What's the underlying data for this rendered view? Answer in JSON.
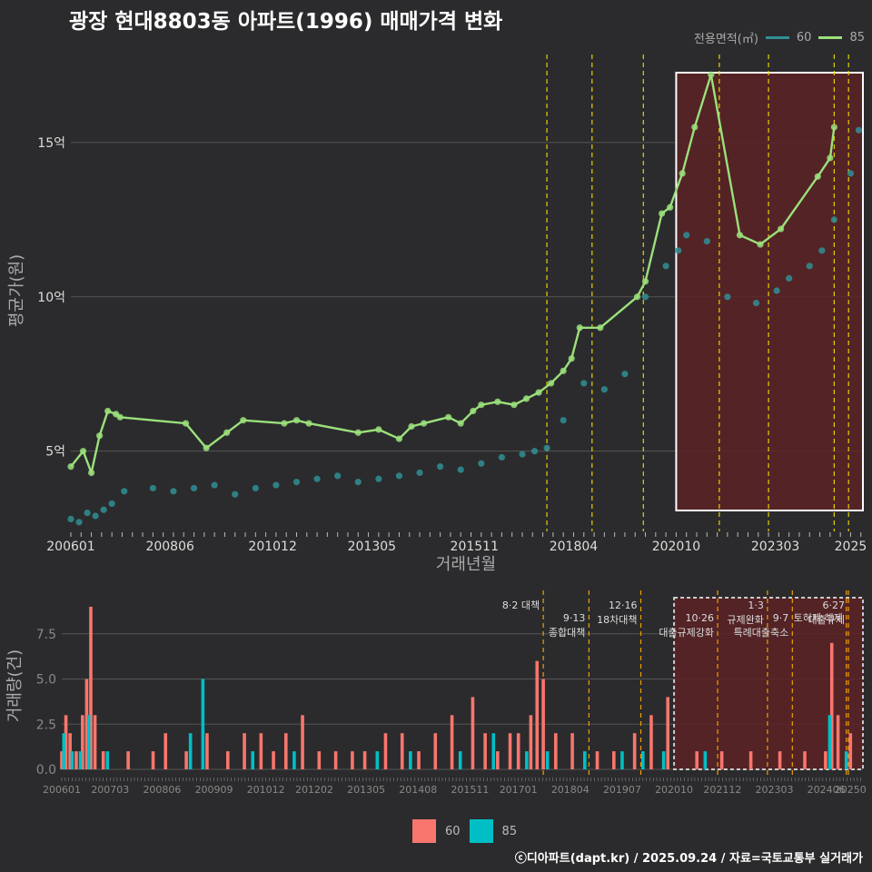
{
  "title": "광장 현대8803동 아파트(1996) 매매가격 변화",
  "legend": {
    "title": "전용면적(㎡)",
    "items": [
      {
        "label": "60",
        "color": "#2f8f94"
      },
      {
        "label": "85",
        "color": "#9be07b"
      }
    ]
  },
  "bottom_legend": [
    {
      "label": "60",
      "color": "#f8766d"
    },
    {
      "label": "85",
      "color": "#00bfc4"
    }
  ],
  "footer": "ⓒ디아파트(dapt.kr) / 2025.09.24 / 자료=국토교통부 실거래가",
  "colors": {
    "bg": "#2b2b2d",
    "grid": "#555555",
    "vline": "#e6d200",
    "vline2": "#f0a000",
    "highlight": "#5a2226"
  },
  "chart_data": [
    {
      "type": "line",
      "xlabel": "거래년월",
      "ylabel": "평균가(원)",
      "x_ticks": [
        "200601",
        "200806",
        "201012",
        "201305",
        "201511",
        "201804",
        "202010",
        "202303",
        "2025"
      ],
      "y_ticks": [
        {
          "v": 5,
          "label": "5억"
        },
        {
          "v": 10,
          "label": "10억"
        },
        {
          "v": 15,
          "label": "15억"
        }
      ],
      "ylim": [
        2.4,
        18
      ],
      "policy_dates": [
        2017.6,
        2018.7,
        2019.95,
        2021.8,
        2023.0,
        2024.6,
        2024.95
      ],
      "highlight_range": [
        2020.75,
        2025.3
      ],
      "series": [
        {
          "name": "85",
          "color": "#9be07b",
          "x": [
            2006.0,
            2006.3,
            2006.5,
            2006.7,
            2006.9,
            2007.1,
            2007.2,
            2008.8,
            2009.3,
            2009.8,
            2010.2,
            2011.2,
            2011.5,
            2011.8,
            2013.0,
            2013.5,
            2014.0,
            2014.3,
            2014.6,
            2015.2,
            2015.5,
            2015.8,
            2016.0,
            2016.4,
            2016.8,
            2017.1,
            2017.4,
            2017.7,
            2018.0,
            2018.2,
            2018.4,
            2018.9,
            2019.8,
            2020.0,
            2020.4,
            2020.6,
            2020.9,
            2021.2,
            2021.6,
            2022.3,
            2022.8,
            2023.3,
            2024.2,
            2024.5,
            2024.6
          ],
          "values": [
            4.5,
            5.0,
            4.3,
            5.5,
            6.3,
            6.2,
            6.1,
            5.9,
            5.1,
            5.6,
            6.0,
            5.9,
            6.0,
            5.9,
            5.6,
            5.7,
            5.4,
            5.8,
            5.9,
            6.1,
            5.9,
            6.3,
            6.5,
            6.6,
            6.5,
            6.7,
            6.9,
            7.2,
            7.6,
            8.0,
            9.0,
            9.0,
            10.0,
            10.5,
            12.7,
            12.9,
            14.0,
            15.5,
            17.2,
            12.0,
            11.7,
            12.2,
            13.9,
            14.5,
            15.5
          ]
        },
        {
          "name": "60",
          "color": "#2f8f94",
          "x": [
            2006.0,
            2006.2,
            2006.4,
            2006.6,
            2006.8,
            2007.0,
            2007.3,
            2008.0,
            2008.5,
            2009.0,
            2009.5,
            2010.0,
            2010.5,
            2011.0,
            2011.5,
            2012.0,
            2012.5,
            2013.0,
            2013.5,
            2014.0,
            2014.5,
            2015.0,
            2015.5,
            2016.0,
            2016.5,
            2017.0,
            2017.3,
            2017.6,
            2018.0,
            2018.5,
            2019.0,
            2019.5,
            2020.0,
            2020.5,
            2020.8,
            2021.0,
            2021.5,
            2022.0,
            2022.7,
            2023.2,
            2023.5,
            2024.0,
            2024.3,
            2024.6,
            2025.0,
            2025.2
          ],
          "values": [
            2.8,
            2.7,
            3.0,
            2.9,
            3.1,
            3.3,
            3.7,
            3.8,
            3.7,
            3.8,
            3.9,
            3.6,
            3.8,
            3.9,
            4.0,
            4.1,
            4.2,
            4.0,
            4.1,
            4.2,
            4.3,
            4.5,
            4.4,
            4.6,
            4.8,
            4.9,
            5.0,
            5.1,
            6.0,
            7.2,
            7.0,
            7.5,
            10.0,
            11.0,
            11.5,
            12.0,
            11.8,
            10.0,
            9.8,
            10.2,
            10.6,
            11.0,
            11.5,
            12.5,
            14.0,
            15.4
          ]
        }
      ]
    },
    {
      "type": "bar",
      "ylabel": "거래량(건)",
      "x_ticks": [
        "200601",
        "200703",
        "200806",
        "200909",
        "201012",
        "201202",
        "201305",
        "201408",
        "201511",
        "201701",
        "201804",
        "201907",
        "202010",
        "202112",
        "202303",
        "202406",
        "20250"
      ],
      "y_ticks": [
        {
          "v": 0,
          "label": "0.0"
        },
        {
          "v": 2.5,
          "label": "2.5"
        },
        {
          "v": 5,
          "label": "5.0"
        },
        {
          "v": 7.5,
          "label": "7.5"
        }
      ],
      "ylim": [
        0,
        9.5
      ],
      "highlight_range": [
        2020.75,
        2025.3
      ],
      "annotations": [
        {
          "x": 2017.6,
          "lines": [
            "8·2 대책"
          ]
        },
        {
          "x": 2018.7,
          "lines": [
            "9·13",
            "종합대책"
          ]
        },
        {
          "x": 2019.95,
          "lines": [
            "12·16",
            "18차대책"
          ]
        },
        {
          "x": 2021.8,
          "lines": [
            "10·26",
            "대출규제강화"
          ]
        },
        {
          "x": 2023.0,
          "lines": [
            "1·3",
            "규제완화"
          ]
        },
        {
          "x": 2023.6,
          "lines": [
            "9·7",
            "특례대출축소"
          ]
        },
        {
          "x": 2024.95,
          "lines": [
            "6·27",
            "대출규제"
          ]
        },
        {
          "x": 2024.9,
          "lines": [
            "토허제 해제"
          ]
        }
      ],
      "series": [
        {
          "name": "60",
          "color": "#f8766d",
          "x": [
            2006.0,
            2006.1,
            2006.2,
            2006.35,
            2006.5,
            2006.6,
            2006.7,
            2006.8,
            2007.0,
            2007.6,
            2008.2,
            2008.5,
            2009.0,
            2009.5,
            2010.0,
            2010.4,
            2010.8,
            2011.1,
            2011.4,
            2011.8,
            2012.2,
            2012.6,
            2013.0,
            2013.3,
            2013.8,
            2014.2,
            2014.6,
            2015.0,
            2015.4,
            2015.9,
            2016.2,
            2016.5,
            2016.8,
            2017.0,
            2017.3,
            2017.45,
            2017.6,
            2017.9,
            2018.3,
            2018.9,
            2019.3,
            2019.8,
            2020.2,
            2020.6,
            2021.3,
            2021.9,
            2022.6,
            2023.3,
            2023.9,
            2024.4,
            2024.55,
            2024.7,
            2025.0
          ],
          "values": [
            1,
            3,
            2,
            1,
            3,
            5,
            9,
            3,
            1,
            1,
            1,
            2,
            1,
            2,
            1,
            2,
            2,
            1,
            2,
            3,
            1,
            1,
            1,
            1,
            2,
            2,
            1,
            2,
            3,
            4,
            2,
            1,
            2,
            2,
            3,
            6,
            5,
            2,
            2,
            1,
            1,
            2,
            3,
            4,
            1,
            1,
            1,
            1,
            1,
            1,
            7,
            3,
            2
          ]
        },
        {
          "name": "85",
          "color": "#00bfc4",
          "x": [
            2006.05,
            2006.25,
            2006.45,
            2006.65,
            2007.1,
            2009.1,
            2009.4,
            2010.6,
            2011.6,
            2013.6,
            2014.4,
            2015.6,
            2016.4,
            2017.2,
            2017.7,
            2018.6,
            2019.5,
            2020.0,
            2020.5,
            2021.5,
            2024.5,
            2024.9
          ],
          "values": [
            2,
            1,
            1,
            3,
            1,
            2,
            5,
            1,
            1,
            1,
            1,
            1,
            2,
            1,
            1,
            1,
            1,
            1,
            1,
            1,
            3,
            1
          ]
        }
      ]
    }
  ]
}
